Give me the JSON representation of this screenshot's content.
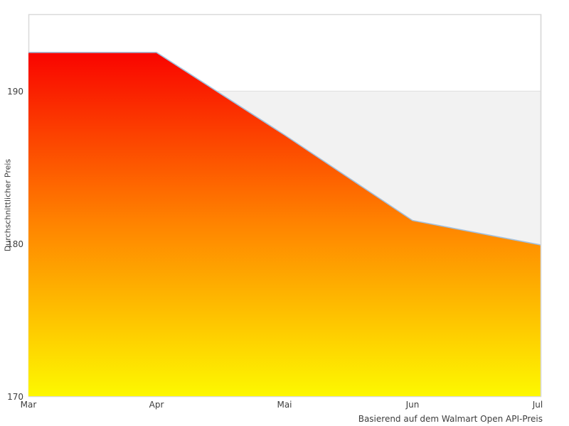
{
  "chart_data": {
    "type": "area",
    "title": "",
    "x": [
      "Mar",
      "Apr",
      "Mai",
      "Jun",
      "Jul"
    ],
    "values": [
      192.5,
      192.5,
      187.1,
      181.5,
      179.9
    ],
    "series_name": "Durchschnittlicher Preis",
    "xlabel": "",
    "ylabel": "Durchschnittlicher Preis",
    "caption": "Basierend auf dem Walmart Open API-Preis",
    "ylim": [
      170,
      195
    ],
    "yticks": [
      170,
      180,
      190
    ],
    "ytick_labels": [
      "170",
      "180",
      "190"
    ],
    "gridline_at": 190,
    "band": {
      "from": 170,
      "to": 190,
      "color": "#f2f2f2"
    },
    "legend": "none",
    "grid": "horizontal-190-only",
    "colors": {
      "gradient_top": "#f90400",
      "gradient_mid": "#ff8400",
      "gradient_bottom": "#fdf800",
      "line": "#a3c0dc",
      "border": "#d9d9d9",
      "gridline": "#e2e2e2",
      "band_fill": "#f2f2f2",
      "text": "#3d3d3d",
      "background": "#ffffff"
    }
  }
}
